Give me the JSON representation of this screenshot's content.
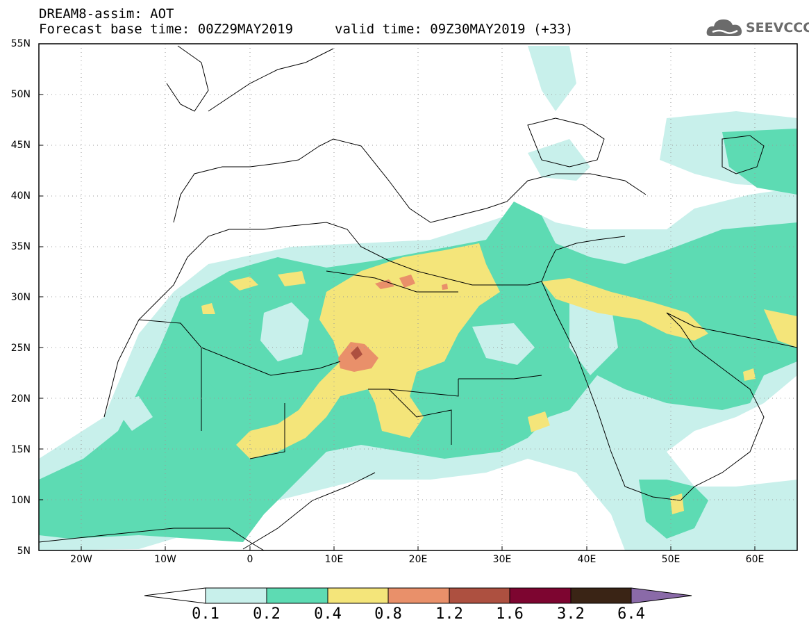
{
  "header": {
    "line1": "DREAM8-assim: AOT",
    "base_time": "Forecast base time: 00Z29MAY2019",
    "valid_time": "valid time: 09Z30MAY2019 (+33)"
  },
  "logo": {
    "text": "SEEVCCC",
    "color": "#6b6b6b"
  },
  "map": {
    "lon_range": [
      -25,
      65
    ],
    "lat_range": [
      5,
      55
    ],
    "grid": "dotted",
    "lat_labels": [
      "5N",
      "10N",
      "15N",
      "20N",
      "25N",
      "30N",
      "35N",
      "40N",
      "45N",
      "50N",
      "55N"
    ],
    "lon_labels": [
      "20W",
      "10W",
      "0",
      "10E",
      "20E",
      "30E",
      "40E",
      "50E",
      "60E"
    ]
  },
  "colorbar": {
    "levels": [
      "0.1",
      "0.2",
      "0.4",
      "0.8",
      "1.2",
      "1.6",
      "3.2",
      "6.4"
    ],
    "colors": [
      "#c8f0eb",
      "#5ddbb3",
      "#f4e57a",
      "#e9906a",
      "#ad5040",
      "#7d0530",
      "#3a2415",
      "#8a6aa8"
    ],
    "under_color": "#ffffff"
  }
}
